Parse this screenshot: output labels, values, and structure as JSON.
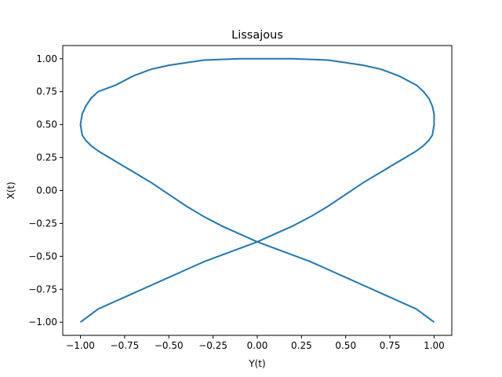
{
  "chart_data": {
    "type": "line",
    "title": "Lissajous",
    "xlabel": "Y(t)",
    "ylabel": "X(t)",
    "xlim": [
      -1.1,
      1.1
    ],
    "ylim": [
      -1.1,
      1.1
    ],
    "xticks": [
      -1.0,
      -0.75,
      -0.5,
      -0.25,
      0.0,
      0.25,
      0.5,
      0.75,
      1.0
    ],
    "yticks": [
      -1.0,
      -0.75,
      -0.5,
      -0.25,
      0.0,
      0.25,
      0.5,
      0.75,
      1.0
    ],
    "xtick_labels": [
      "−1.00",
      "−0.75",
      "−0.50",
      "−0.25",
      "0.00",
      "0.25",
      "0.50",
      "0.75",
      "1.00"
    ],
    "ytick_labels": [
      "−1.00",
      "−0.75",
      "−0.50",
      "−0.25",
      "0.00",
      "0.25",
      "0.50",
      "0.75",
      "1.00"
    ],
    "grid": false,
    "line_color": "#1f77b4",
    "series": [
      {
        "x": [
          -1.0,
          -0.99,
          -0.97,
          -0.94,
          -0.9,
          -0.8,
          -0.7,
          -0.6,
          -0.5,
          -0.4,
          -0.3,
          -0.2,
          -0.1,
          0.0,
          0.1,
          0.2,
          0.3,
          0.4,
          0.5,
          0.6,
          0.7,
          0.8,
          0.9,
          0.94,
          0.97,
          0.99,
          1.0,
          1.0,
          0.99,
          0.97,
          0.94,
          0.9,
          0.8,
          0.7,
          0.6,
          0.5,
          0.4,
          0.3,
          0.2,
          0.1,
          0.0,
          -0.1,
          -0.2,
          -0.3,
          -0.4,
          -0.5,
          -0.6,
          -0.7,
          -0.8,
          -0.9,
          -0.94,
          -0.97,
          -0.99,
          -1.0,
          -1.0,
          -0.99,
          -0.97,
          -0.94,
          -0.9,
          -0.8,
          -0.7,
          -0.6,
          -0.5,
          -0.4,
          -0.3,
          -0.2,
          -0.1,
          0.0,
          0.1,
          0.2,
          0.3,
          0.4,
          0.5,
          0.6,
          0.7,
          0.8,
          0.9,
          0.94,
          0.97,
          0.99,
          1.0
        ],
        "y": [
          -1.0,
          -0.99,
          -0.97,
          -0.94,
          -0.9,
          -0.84,
          -0.78,
          -0.72,
          -0.66,
          -0.6,
          -0.54,
          -0.49,
          -0.44,
          -0.39,
          -0.33,
          -0.27,
          -0.2,
          -0.12,
          -0.03,
          0.06,
          0.14,
          0.22,
          0.3,
          0.34,
          0.38,
          0.42,
          0.5,
          0.58,
          0.64,
          0.7,
          0.75,
          0.8,
          0.87,
          0.92,
          0.95,
          0.97,
          0.99,
          0.995,
          1.0,
          1.0,
          1.0,
          1.0,
          0.995,
          0.99,
          0.97,
          0.95,
          0.92,
          0.87,
          0.8,
          0.75,
          0.7,
          0.64,
          0.58,
          0.5,
          0.5,
          0.42,
          0.38,
          0.34,
          0.3,
          0.22,
          0.14,
          0.06,
          -0.03,
          -0.12,
          -0.2,
          -0.27,
          -0.33,
          -0.39,
          -0.44,
          -0.49,
          -0.54,
          -0.6,
          -0.66,
          -0.72,
          -0.78,
          -0.84,
          -0.9,
          -0.94,
          -0.97,
          -0.99,
          -1.0
        ]
      }
    ]
  }
}
